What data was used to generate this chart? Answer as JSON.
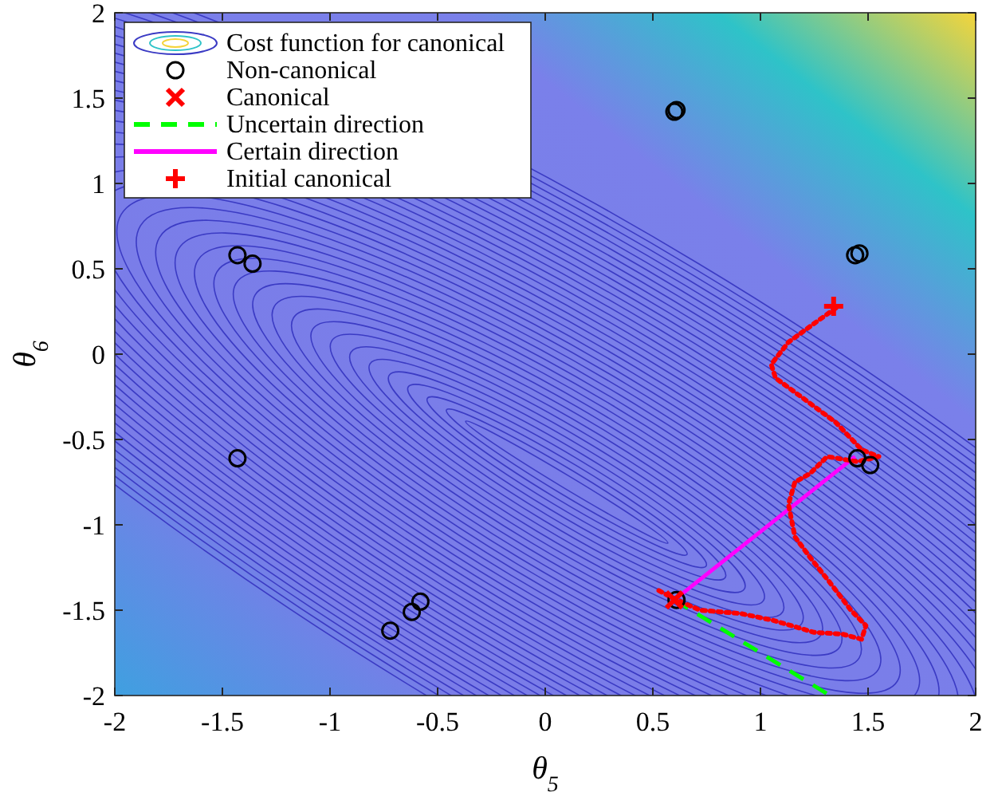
{
  "chart_data": {
    "type": "line",
    "xlabel": "θ$_{5}$",
    "ylabel": "θ$_{6}$",
    "xlim": [
      -2,
      2
    ],
    "ylim": [
      -2,
      2
    ],
    "xticks": [
      -2,
      -1.5,
      -1,
      -0.5,
      0,
      0.5,
      1,
      1.5,
      2
    ],
    "yticks": [
      -2,
      -1.5,
      -1,
      -0.5,
      0,
      0.5,
      1,
      1.5,
      2
    ],
    "grid": false,
    "legend": "top left",
    "series": [
      {
        "name": "Cost function for canonical",
        "type": "other",
        "color": "#3b3bc4"
      },
      {
        "name": "Non-canonical",
        "type": "scatter",
        "marker": "circle",
        "color": "#000000",
        "x": [
          0.6,
          0.61,
          1.44,
          1.46,
          -1.43,
          -1.36,
          -1.43,
          -0.58,
          -0.62,
          -0.72,
          1.45,
          1.51,
          0.61
        ],
        "values": [
          1.42,
          1.43,
          0.58,
          0.59,
          0.58,
          0.53,
          -0.61,
          -1.45,
          -1.51,
          -1.62,
          -0.61,
          -0.65,
          -1.44
        ]
      },
      {
        "name": "Canonical",
        "type": "scatter",
        "marker": "cross",
        "color": "#ff0000",
        "x": [
          0.6
        ],
        "values": [
          -1.44
        ]
      },
      {
        "name": "Uncertain direction",
        "marker": "none",
        "line_style": "dashed",
        "color": "#00ff00",
        "x": [
          0.6,
          1.31
        ],
        "values": [
          -1.44,
          -1.99
        ]
      },
      {
        "name": "Certain direction",
        "marker": "none",
        "line_style": "solid",
        "color": "#ff00ff",
        "x": [
          0.6,
          1.44
        ],
        "values": [
          -1.44,
          -0.6
        ]
      },
      {
        "name": "Initial canonical",
        "type": "scatter",
        "marker": "plus",
        "color": "#ff0000",
        "x": [
          1.34
        ],
        "values": [
          0.28
        ]
      },
      {
        "marker": "none",
        "line_style": "dotted",
        "color": "#ff0000",
        "x": [
          1.35,
          1.25,
          1.13,
          1.05,
          1.07,
          1.2,
          1.35,
          1.47,
          1.55,
          1.45,
          1.31,
          1.23,
          1.16,
          1.13,
          1.16,
          1.23,
          1.33,
          1.42,
          1.49,
          1.47,
          1.38,
          1.25,
          1.06,
          0.91,
          0.72,
          0.61,
          0.52
        ],
        "values": [
          0.27,
          0.18,
          0.07,
          -0.06,
          -0.14,
          -0.26,
          -0.4,
          -0.56,
          -0.6,
          -0.63,
          -0.6,
          -0.7,
          -0.75,
          -0.88,
          -1.07,
          -1.19,
          -1.35,
          -1.5,
          -1.59,
          -1.67,
          -1.64,
          -1.63,
          -1.56,
          -1.52,
          -1.5,
          -1.44,
          -1.38
        ]
      }
    ]
  }
}
